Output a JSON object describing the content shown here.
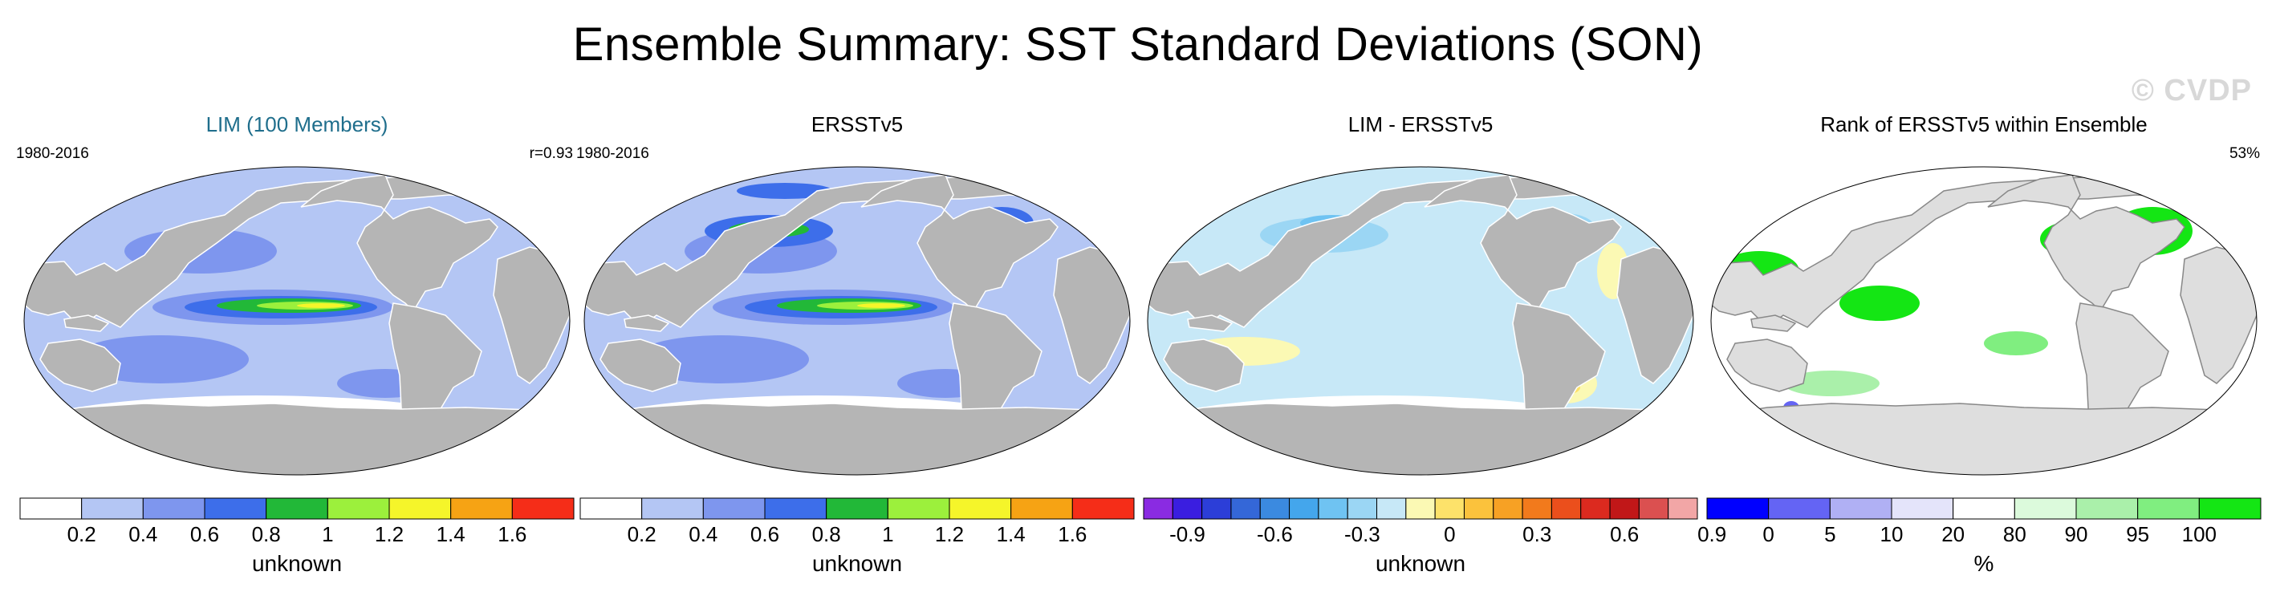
{
  "title": "Ensemble Summary: SST Standard Deviations (SON)",
  "watermark": "© CVDP",
  "panels": [
    {
      "title": "LIM (100 Members)",
      "left_note": "1980-2016",
      "right_note": "r=0.93",
      "legend": {
        "colors": [
          "#ffffff",
          "#b4c6f4",
          "#7e96ee",
          "#3d6eea",
          "#22b838",
          "#9cf03c",
          "#f5f52a",
          "#f6a314",
          "#f52d18"
        ],
        "ticks": [
          "0.2",
          "0.4",
          "0.6",
          "0.8",
          "1",
          "1.2",
          "1.4",
          "1.6"
        ],
        "label": "unknown"
      }
    },
    {
      "title": "ERSSTv5",
      "left_note": "1980-2016",
      "right_note": "",
      "legend": {
        "colors": [
          "#ffffff",
          "#b4c6f4",
          "#7e96ee",
          "#3d6eea",
          "#22b838",
          "#9cf03c",
          "#f5f52a",
          "#f6a314",
          "#f52d18"
        ],
        "ticks": [
          "0.2",
          "0.4",
          "0.6",
          "0.8",
          "1",
          "1.2",
          "1.4",
          "1.6"
        ],
        "label": "unknown"
      }
    },
    {
      "title": "LIM - ERSSTv5",
      "left_note": "",
      "right_note": "",
      "legend": {
        "colors": [
          "#8a2be2",
          "#3a1ee0",
          "#2c3ed8",
          "#3467d8",
          "#3b8ae0",
          "#44a6ec",
          "#6fc3f2",
          "#9bd6f4",
          "#c7e8f7",
          "#fbf9b4",
          "#fde26a",
          "#fbc23c",
          "#f7a124",
          "#f27a1c",
          "#eb4f1c",
          "#dc2a1f",
          "#c11718",
          "#db5050",
          "#f2a6a6"
        ],
        "ticks": [
          "-0.9",
          "-0.6",
          "-0.3",
          "0",
          "0.3",
          "0.6",
          "0.9"
        ],
        "label": "unknown"
      }
    },
    {
      "title": "Rank of ERSSTv5 within Ensemble",
      "left_note": "",
      "right_note": "53%",
      "legend": {
        "colors": [
          "#0000ff",
          "#6464f4",
          "#b0b0f4",
          "#e4e4fa",
          "#ffffff",
          "#dcfadc",
          "#aaf0aa",
          "#80ee80",
          "#14e614"
        ],
        "ticks": [
          "0",
          "5",
          "10",
          "20",
          "80",
          "90",
          "95",
          "100"
        ],
        "label": "%"
      }
    }
  ]
}
